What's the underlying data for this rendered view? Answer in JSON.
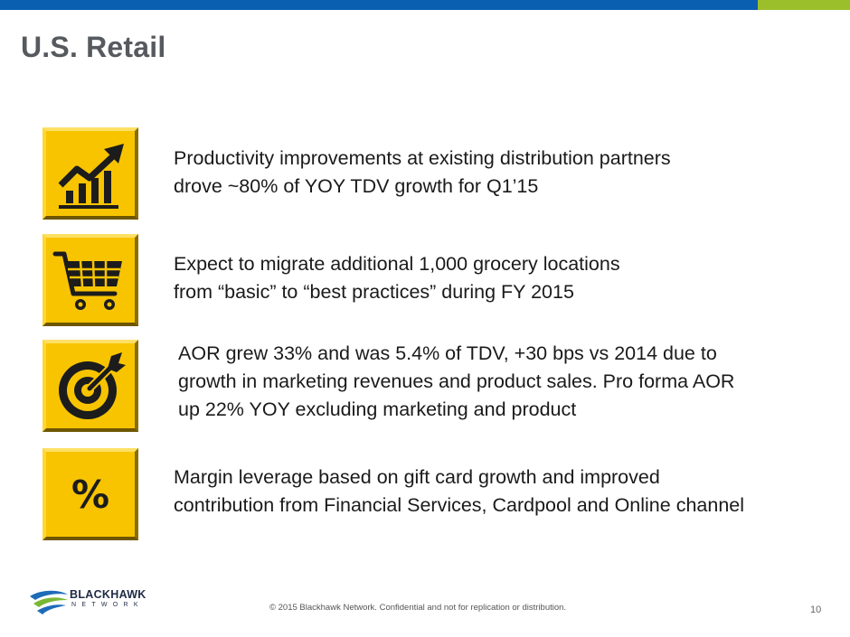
{
  "slide": {
    "title": "U.S. Retail",
    "bullets": [
      {
        "icon": "growth-chart-icon",
        "lines": [
          "Productivity improvements at existing distribution partners",
          "drove ~80% of YOY TDV growth for Q1’15"
        ]
      },
      {
        "icon": "shopping-cart-icon",
        "lines": [
          "Expect to migrate additional 1,000 grocery locations",
          "from “basic” to “best practices” during FY 2015"
        ]
      },
      {
        "icon": "target-icon",
        "lines": [
          "AOR grew 33% and was 5.4% of TDV, +30 bps vs 2014 due to",
          "growth in marketing revenues and product sales.  Pro forma AOR",
          "up 22% YOY excluding marketing and product"
        ]
      },
      {
        "icon": "percent-icon",
        "symbol": "%",
        "lines": [
          "Margin leverage based on gift card growth and improved",
          "contribution from Financial Services, Cardpool and Online channel"
        ]
      }
    ]
  },
  "footer": {
    "logo_word": "BLACKHAWK",
    "logo_sub": "NETWORK",
    "copyright": "© 2015 Blackhawk Network. Confidential and not for replication or distribution.",
    "page_number": "10"
  },
  "colors": {
    "top_bar_blue": "#0a5fb0",
    "top_bar_green": "#9bbf2a",
    "tile_yellow": "#f8c400",
    "title_gray": "#565a5f"
  }
}
